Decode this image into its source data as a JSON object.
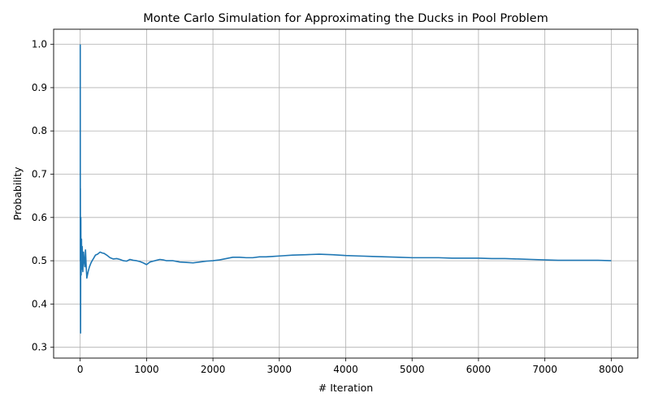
{
  "chart_data": {
    "type": "line",
    "title": "Monte Carlo Simulation for Approximating the Ducks in Pool Problem",
    "xlabel": "# Iteration",
    "ylabel": "Probability",
    "xlim": [
      -400,
      8400
    ],
    "ylim": [
      0.275,
      1.035
    ],
    "xticks": [
      0,
      1000,
      2000,
      3000,
      4000,
      5000,
      6000,
      7000,
      8000
    ],
    "xtick_labels": [
      "0",
      "1000",
      "2000",
      "3000",
      "4000",
      "5000",
      "6000",
      "7000",
      "8000"
    ],
    "yticks": [
      0.3,
      0.4,
      0.5,
      0.6,
      0.7,
      0.8,
      0.9,
      1.0
    ],
    "ytick_labels": [
      "0.3",
      "0.4",
      "0.5",
      "0.6",
      "0.7",
      "0.8",
      "0.9",
      "1.0"
    ],
    "grid": true,
    "series": [
      {
        "color": "#1f77b4",
        "x": [
          1,
          2,
          3,
          4,
          5,
          6,
          8,
          10,
          12,
          15,
          20,
          25,
          30,
          40,
          50,
          60,
          70,
          80,
          90,
          100,
          120,
          140,
          160,
          180,
          200,
          230,
          260,
          300,
          330,
          360,
          400,
          450,
          500,
          550,
          600,
          650,
          700,
          750,
          800,
          850,
          900,
          950,
          1000,
          1050,
          1100,
          1150,
          1200,
          1250,
          1300,
          1400,
          1500,
          1600,
          1700,
          1800,
          1900,
          2000,
          2100,
          2200,
          2300,
          2400,
          2500,
          2600,
          2700,
          2800,
          2900,
          3000,
          3200,
          3400,
          3600,
          3800,
          4000,
          4200,
          4400,
          4600,
          4800,
          5000,
          5200,
          5400,
          5600,
          5800,
          6000,
          6200,
          6400,
          6600,
          6800,
          7000,
          7200,
          7400,
          7600,
          7800,
          8000
        ],
        "y": [
          1.0,
          0.5,
          0.667,
          0.5,
          0.4,
          0.333,
          0.5,
          0.6,
          0.5,
          0.467,
          0.55,
          0.48,
          0.533,
          0.475,
          0.52,
          0.5,
          0.486,
          0.525,
          0.489,
          0.46,
          0.475,
          0.486,
          0.494,
          0.5,
          0.505,
          0.513,
          0.515,
          0.52,
          0.518,
          0.517,
          0.513,
          0.507,
          0.504,
          0.505,
          0.503,
          0.5,
          0.499,
          0.503,
          0.501,
          0.5,
          0.498,
          0.495,
          0.491,
          0.497,
          0.499,
          0.501,
          0.503,
          0.502,
          0.5,
          0.5,
          0.497,
          0.496,
          0.495,
          0.497,
          0.499,
          0.5,
          0.502,
          0.505,
          0.508,
          0.508,
          0.507,
          0.507,
          0.509,
          0.509,
          0.51,
          0.511,
          0.513,
          0.514,
          0.515,
          0.514,
          0.512,
          0.511,
          0.51,
          0.509,
          0.508,
          0.507,
          0.507,
          0.507,
          0.506,
          0.506,
          0.506,
          0.505,
          0.505,
          0.504,
          0.503,
          0.502,
          0.501,
          0.501,
          0.501,
          0.501,
          0.5
        ]
      }
    ]
  }
}
